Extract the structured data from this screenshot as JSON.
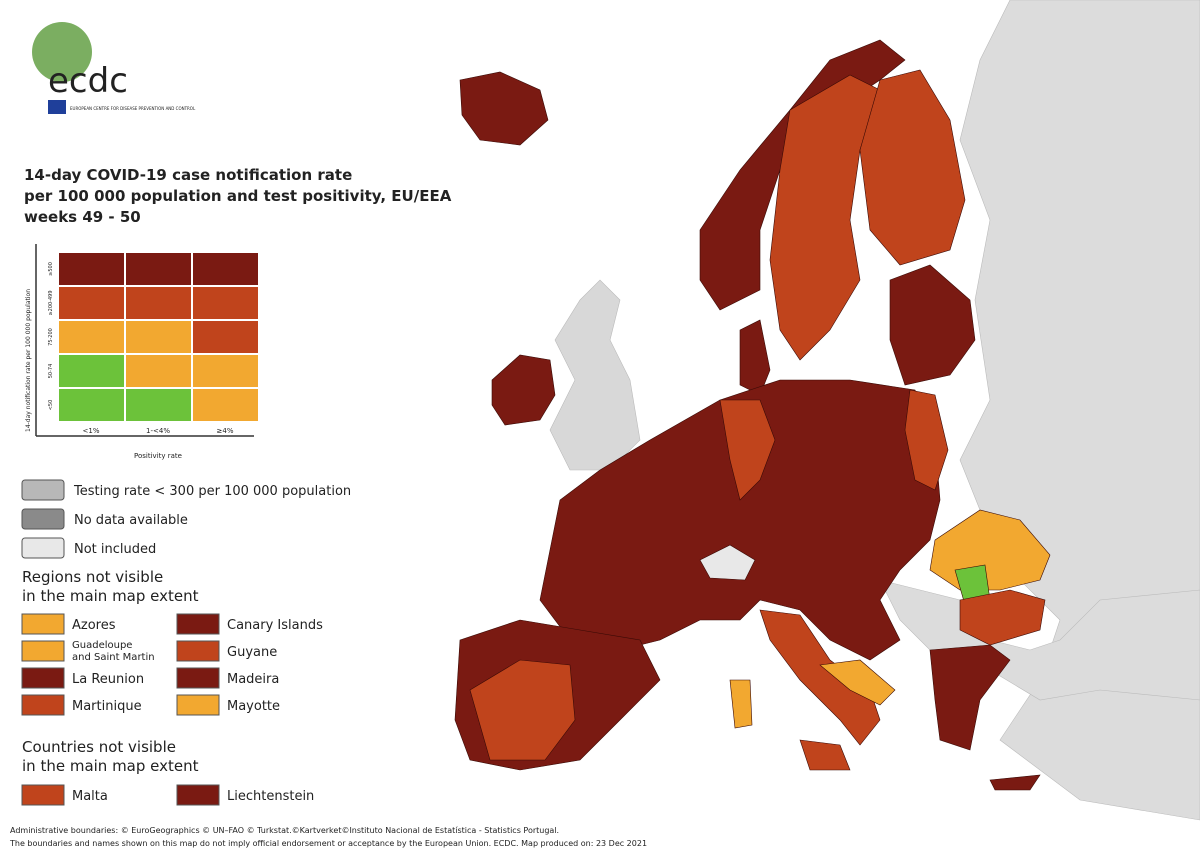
{
  "logo": {
    "text": "ecdc",
    "subtext": "EUROPEAN CENTRE FOR DISEASE PREVENTION AND CONTROL"
  },
  "title": [
    "14-day COVID-19 case notification rate",
    "per 100 000 population and test positivity, EU/EEA",
    "weeks 49 - 50"
  ],
  "matrix": {
    "y_label": "14-day notification rate per 100 000 population",
    "rows": [
      "≥500",
      "≥200-499",
      "75-200",
      "50-74",
      "<50"
    ],
    "columns": [
      "<1%",
      "1-<4%",
      "≥4%"
    ],
    "x_label": "Positivity rate"
  },
  "legend": [
    "Testing rate < 300 per 100 000 population",
    "No data available",
    "Not included"
  ],
  "regions_heading": [
    "Regions not visible",
    "in the main map extent"
  ],
  "regions": [
    "Azores",
    "Canary Islands",
    "Guadeloupe and Saint Martin",
    "Guyane",
    "La Reunion",
    "Madeira",
    "Martinique",
    "Mayotte"
  ],
  "countries_heading": [
    "Countries not visible",
    "in the main map extent"
  ],
  "countries": [
    "Malta",
    "Liechtenstein"
  ],
  "footer": [
    "Administrative boundaries: © EuroGeographics © UN–FAO © Turkstat.©Kartverket©Instituto Nacional de Estatística - Statistics Portugal.",
    "The boundaries and names shown on this map do not imply official endorsement or acceptance by the European Union. ECDC. Map produced on: 23 Dec 2021"
  ]
}
